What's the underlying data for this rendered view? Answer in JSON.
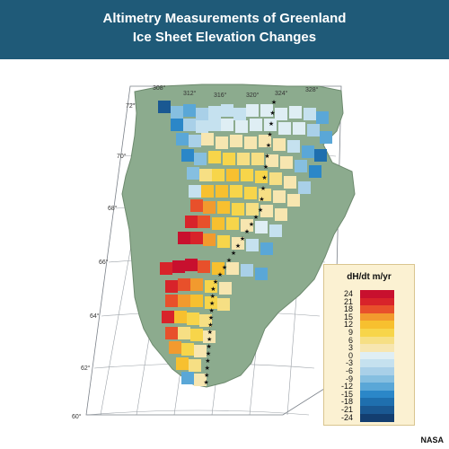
{
  "header": {
    "title_line1": "Altimetry Measurements of Greenland",
    "title_line2": "Ice Sheet Elevation Changes"
  },
  "map": {
    "graticule_labels": [
      {
        "name": "lon-308",
        "text": "308°"
      },
      {
        "name": "lon-312",
        "text": "312°"
      },
      {
        "name": "lon-316",
        "text": "316°"
      },
      {
        "name": "lon-320",
        "text": "320°"
      },
      {
        "name": "lon-324",
        "text": "324°"
      },
      {
        "name": "lon-328",
        "text": "328°"
      },
      {
        "name": "lat-72",
        "text": "72°"
      },
      {
        "name": "lat-70",
        "text": "70°"
      },
      {
        "name": "lat-68",
        "text": "68°"
      },
      {
        "name": "lat-66",
        "text": "66°"
      },
      {
        "name": "lat-64",
        "text": "64°"
      },
      {
        "name": "lat-62",
        "text": "62°"
      },
      {
        "name": "lat-60",
        "text": "60°"
      }
    ],
    "colors": {
      "land": "#8cab8e",
      "ocean": "#ffffff",
      "grid": "#9aa0a6",
      "divide_marker": "#111111"
    }
  },
  "legend": {
    "title": "dH/dt m/yr",
    "rows": [
      {
        "label": "24",
        "color": "#c8102e"
      },
      {
        "label": "21",
        "color": "#d8232a"
      },
      {
        "label": "18",
        "color": "#e8502b"
      },
      {
        "label": "15",
        "color": "#f29a2e"
      },
      {
        "label": "12",
        "color": "#f7c02f"
      },
      {
        "label": "9",
        "color": "#f7d54a"
      },
      {
        "label": "6",
        "color": "#f6df84"
      },
      {
        "label": "3",
        "color": "#f7e6b0"
      },
      {
        "label": "0",
        "color": "#dfeef4"
      },
      {
        "label": "-3",
        "color": "#c5e1ef"
      },
      {
        "label": "-6",
        "color": "#a9d0e8"
      },
      {
        "label": "-9",
        "color": "#86bfe0"
      },
      {
        "label": "-12",
        "color": "#5aa7d7"
      },
      {
        "label": "-15",
        "color": "#2b87c8"
      },
      {
        "label": "-18",
        "color": "#1f6fae"
      },
      {
        "label": "-21",
        "color": "#1a5892"
      },
      {
        "label": "-24",
        "color": "#133e70"
      }
    ]
  },
  "credit": "NASA"
}
